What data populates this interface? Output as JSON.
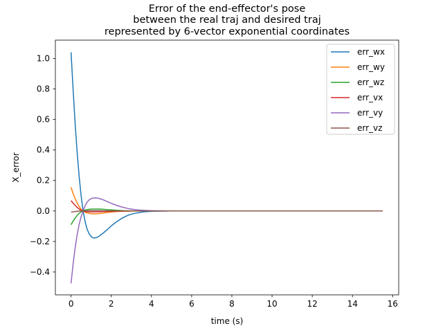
{
  "chart_data": {
    "type": "line",
    "title": [
      "Error of the end-effector's pose",
      "between the real traj and desired traj",
      "represented by 6-vector exponential coordinates"
    ],
    "xlabel": "time (s)",
    "ylabel": "X_error",
    "xlim": [
      -0.78,
      16.3
    ],
    "ylim": [
      -0.55,
      1.12
    ],
    "xticks": [
      0,
      2,
      4,
      6,
      8,
      10,
      12,
      14,
      16
    ],
    "xtick_labels": [
      "0",
      "2",
      "4",
      "6",
      "8",
      "10",
      "12",
      "14",
      "16"
    ],
    "yticks": [
      -0.4,
      -0.2,
      0.0,
      0.2,
      0.4,
      0.6,
      0.8,
      1.0
    ],
    "ytick_labels": [
      "−0.4",
      "−0.2",
      "0.0",
      "0.2",
      "0.4",
      "0.6",
      "0.8",
      "1.0"
    ],
    "grid": false,
    "legend_position": "top-right",
    "series": [
      {
        "name": "err_wx",
        "color": "#1f77b4",
        "x": [
          0,
          0.1,
          0.2,
          0.3,
          0.4,
          0.5,
          0.6,
          0.7,
          0.8,
          0.9,
          1.0,
          1.1,
          1.2,
          1.3,
          1.4,
          1.6,
          1.8,
          2.0,
          2.2,
          2.5,
          2.8,
          3.0,
          3.3,
          3.6,
          4.0,
          4.5,
          5.0,
          6.0,
          8.0,
          10.0,
          12.0,
          14.0,
          15.5
        ],
        "y": [
          1.04,
          0.8,
          0.58,
          0.39,
          0.23,
          0.1,
          0.0,
          -0.07,
          -0.12,
          -0.15,
          -0.168,
          -0.176,
          -0.177,
          -0.173,
          -0.165,
          -0.145,
          -0.122,
          -0.098,
          -0.077,
          -0.05,
          -0.03,
          -0.021,
          -0.012,
          -0.006,
          -0.002,
          -0.001,
          0.0,
          0.0,
          0.0,
          0.0,
          0.0,
          0.0,
          0.0
        ]
      },
      {
        "name": "err_wy",
        "color": "#ff7f0e",
        "x": [
          0,
          0.1,
          0.2,
          0.3,
          0.4,
          0.5,
          0.6,
          0.7,
          0.8,
          0.9,
          1.0,
          1.2,
          1.4,
          1.6,
          1.8,
          2.0,
          2.3,
          2.6,
          3.0,
          3.5,
          4.0,
          5.0,
          8.0,
          12.0,
          15.5
        ],
        "y": [
          0.155,
          0.115,
          0.082,
          0.053,
          0.03,
          0.012,
          0.0,
          -0.008,
          -0.013,
          -0.016,
          -0.018,
          -0.019,
          -0.017,
          -0.014,
          -0.01,
          -0.007,
          -0.004,
          -0.002,
          -0.001,
          0.0,
          0.0,
          0.0,
          0.0,
          0.0,
          0.0
        ]
      },
      {
        "name": "err_wz",
        "color": "#2ca02c",
        "x": [
          0,
          0.1,
          0.2,
          0.3,
          0.4,
          0.5,
          0.6,
          0.7,
          0.8,
          0.9,
          1.0,
          1.2,
          1.4,
          1.6,
          1.8,
          2.0,
          2.3,
          2.6,
          3.0,
          3.5,
          4.0,
          5.0,
          8.0,
          12.0,
          15.5
        ],
        "y": [
          -0.09,
          -0.067,
          -0.047,
          -0.03,
          -0.016,
          -0.006,
          0.001,
          0.006,
          0.009,
          0.011,
          0.012,
          0.013,
          0.013,
          0.011,
          0.009,
          0.007,
          0.004,
          0.002,
          0.001,
          0.0,
          0.0,
          0.0,
          0.0,
          0.0,
          0.0
        ]
      },
      {
        "name": "err_vx",
        "color": "#d62728",
        "x": [
          0,
          0.1,
          0.2,
          0.3,
          0.4,
          0.5,
          0.6,
          0.7,
          0.8,
          0.9,
          1.0,
          1.2,
          1.4,
          1.6,
          2.0,
          2.5,
          3.0,
          4.0,
          8.0,
          12.0,
          15.5
        ],
        "y": [
          0.068,
          0.052,
          0.037,
          0.024,
          0.013,
          0.005,
          0.0,
          -0.003,
          -0.005,
          -0.006,
          -0.006,
          -0.006,
          -0.005,
          -0.004,
          -0.002,
          -0.001,
          0.0,
          0.0,
          0.0,
          0.0,
          0.0
        ]
      },
      {
        "name": "err_vy",
        "color": "#9467bd",
        "x": [
          0,
          0.1,
          0.2,
          0.3,
          0.4,
          0.5,
          0.6,
          0.7,
          0.8,
          0.9,
          1.0,
          1.1,
          1.2,
          1.3,
          1.4,
          1.6,
          1.8,
          2.0,
          2.2,
          2.5,
          2.8,
          3.0,
          3.3,
          3.6,
          4.0,
          4.5,
          5.0,
          6.0,
          8.0,
          10.0,
          12.0,
          14.0,
          15.5
        ],
        "y": [
          -0.475,
          -0.35,
          -0.245,
          -0.158,
          -0.09,
          -0.038,
          0.0,
          0.035,
          0.058,
          0.073,
          0.081,
          0.085,
          0.086,
          0.085,
          0.082,
          0.073,
          0.062,
          0.05,
          0.04,
          0.027,
          0.017,
          0.012,
          0.007,
          0.004,
          0.002,
          0.001,
          0.0,
          0.0,
          0.0,
          0.0,
          0.0,
          0.0,
          0.0
        ]
      },
      {
        "name": "err_vz",
        "color": "#8c564b",
        "x": [
          0,
          0.2,
          0.4,
          0.6,
          0.8,
          1.0,
          1.3,
          1.6,
          2.0,
          3.0,
          4.0,
          8.0,
          12.0,
          15.5
        ],
        "y": [
          -0.008,
          -0.004,
          -0.001,
          0.0,
          0.001,
          0.002,
          0.002,
          0.001,
          0.001,
          0.0,
          0.0,
          0.0,
          0.0,
          0.0
        ]
      }
    ]
  }
}
